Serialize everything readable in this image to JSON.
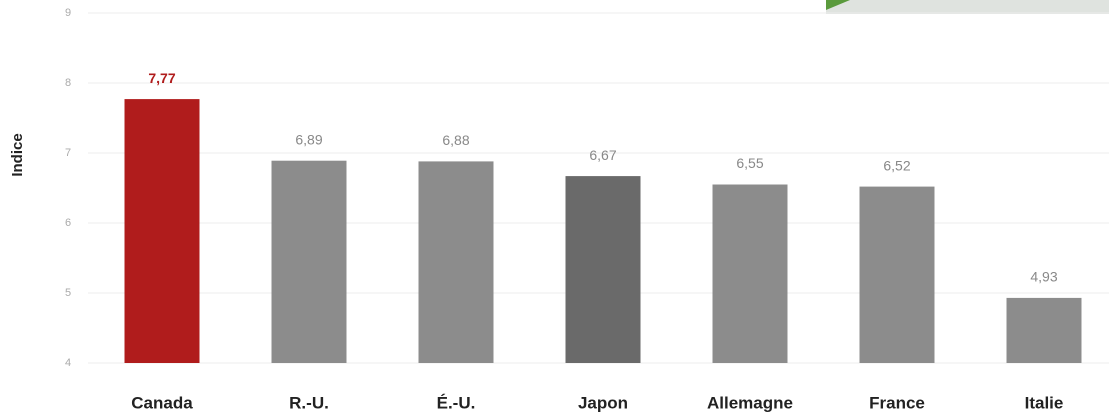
{
  "chart_data": {
    "type": "bar",
    "y_label": "Indice",
    "categories": [
      "Canada",
      "R.-U.",
      "É.-U.",
      "Japon",
      "Allemagne",
      "France",
      "Italie"
    ],
    "values": [
      7.77,
      6.89,
      6.88,
      6.67,
      6.55,
      6.52,
      4.93
    ],
    "value_labels": [
      "7,77",
      "6,89",
      "6,88",
      "6,67",
      "6,55",
      "6,52",
      "4,93"
    ],
    "colors": [
      "#b01c1c",
      "#8c8c8c",
      "#8c8c8c",
      "#6a6a6a",
      "#8c8c8c",
      "#8c8c8c",
      "#8c8c8c"
    ],
    "ylim": [
      4,
      9
    ],
    "yticks": [
      4,
      5,
      6,
      7,
      8,
      9
    ],
    "grid": true
  }
}
